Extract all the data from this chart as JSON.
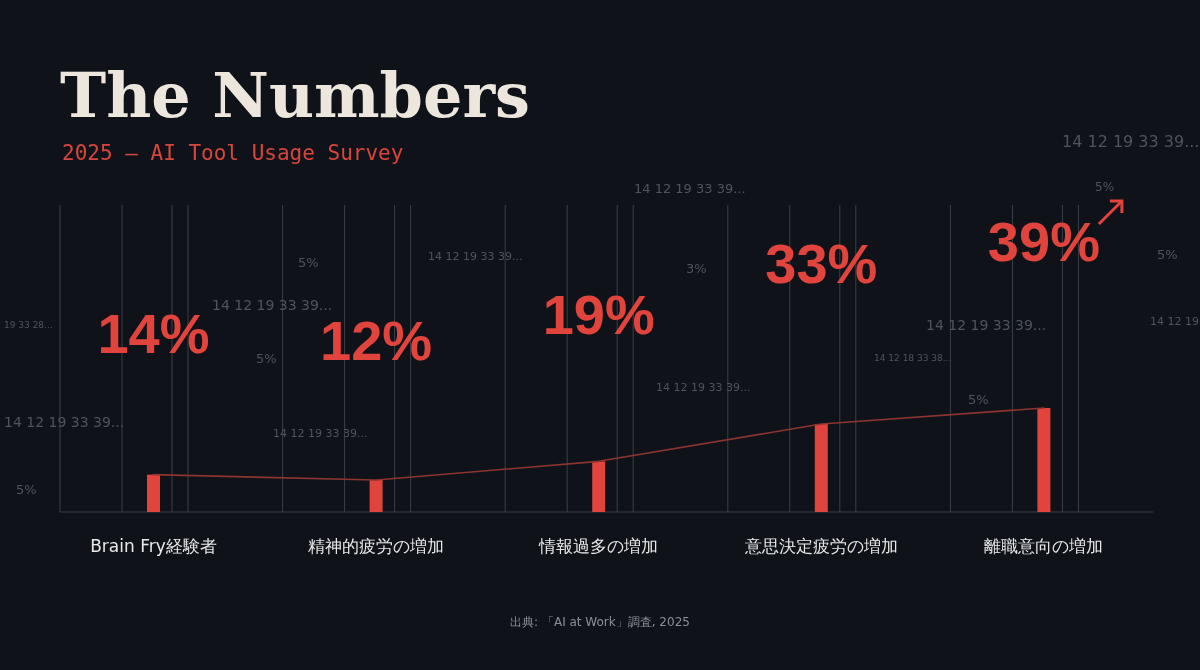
{
  "chart_data": {
    "type": "bar",
    "title": "The Numbers",
    "subtitle": "2025 — AI Tool Usage Survey",
    "categories": [
      "Brain Fry経験者",
      "精神的疲労の増加",
      "情報過多の増加",
      "意思決定疲労の増加",
      "離職意向の増加"
    ],
    "series": [
      {
        "color": "#e0443c",
        "values": [
          14,
          12,
          19,
          33,
          39
        ],
        "value_labels": [
          "14%",
          "12%",
          "19%",
          "33%",
          "39%"
        ]
      },
      {
        "type": "line",
        "color": "#8c3430",
        "values": [
          14,
          12,
          19,
          33,
          39
        ],
        "marker": "none"
      }
    ],
    "grid": "x",
    "annotations": [
      "出典: 「AI at Work」調査, 2025",
      "14 12 19 33 39...",
      "14 12 19 33 39...",
      "5%",
      "14 12 19 33 39...",
      "5%",
      "3%",
      "5%",
      "14 12 19 33 39...",
      "19 33 28...",
      "14 12 19 33 39...",
      "14 12 19",
      "5%",
      "14 12 18 33 38...",
      "14 12 19 33 39...",
      "5%",
      "14 12 19 33 39...",
      "14 12 19 33 39...",
      "5%"
    ]
  }
}
